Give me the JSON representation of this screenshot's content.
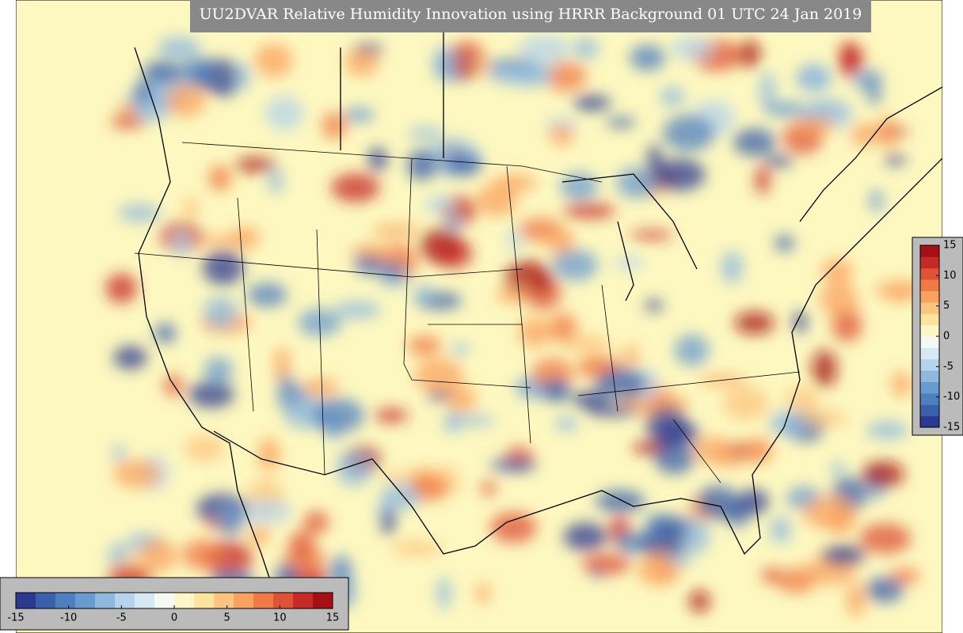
{
  "title": "UU2DVAR Relative Humidity Innovation using HRRR Background 01 UTC 24 Jan 2019",
  "colorbar": {
    "range": [
      -15,
      15
    ],
    "ticks": [
      -15,
      -10,
      -5,
      0,
      5,
      10,
      15
    ],
    "colors": [
      "#2b3990",
      "#3a5fab",
      "#4f7fbf",
      "#6a9bd0",
      "#8fb8de",
      "#b5d3ea",
      "#d6e8f2",
      "#f4f9f5",
      "#fdf6c8",
      "#fde3a0",
      "#fcc47e",
      "#f9a160",
      "#f07a45",
      "#de5336",
      "#c52a27",
      "#a50f15"
    ]
  }
}
